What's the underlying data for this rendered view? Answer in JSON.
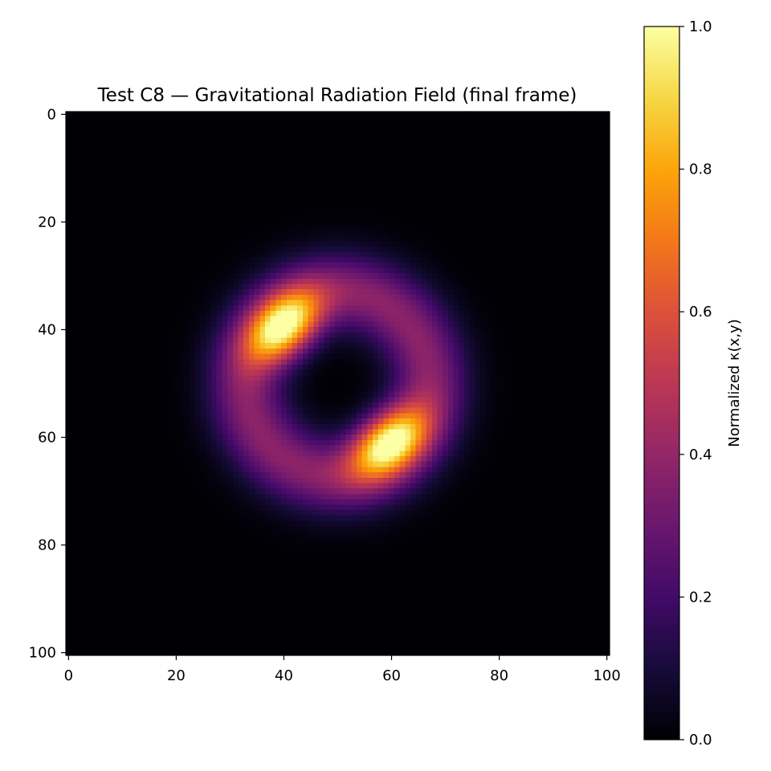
{
  "chart_data": {
    "type": "heatmap",
    "title": "Test C8 — Gravitational Radiation Field (final frame)",
    "xlabel": "",
    "ylabel": "",
    "colormap": "inferno",
    "grid": false,
    "origin": "upper",
    "xlim": [
      -0.5,
      100.5
    ],
    "ylim": [
      100.5,
      -0.5
    ],
    "x_ticks": [
      0,
      20,
      40,
      60,
      80,
      100
    ],
    "y_ticks": [
      0,
      20,
      40,
      60,
      80,
      100
    ],
    "colorbar": {
      "label": "Normalized κ(x,y)",
      "range": [
        0.0,
        1.0
      ],
      "ticks": [
        "0.0",
        "0.2",
        "0.4",
        "0.6",
        "0.8",
        "1.0"
      ]
    },
    "field": {
      "grid_size": 101,
      "ring_center": [
        50,
        50
      ],
      "ring_radius": 17,
      "ring_width": 7,
      "ring_level": 0.38,
      "hotspots": [
        {
          "x": 40,
          "y": 39.5,
          "peak": 1.0
        },
        {
          "x": 59.5,
          "y": 61,
          "peak": 1.0
        }
      ]
    }
  }
}
